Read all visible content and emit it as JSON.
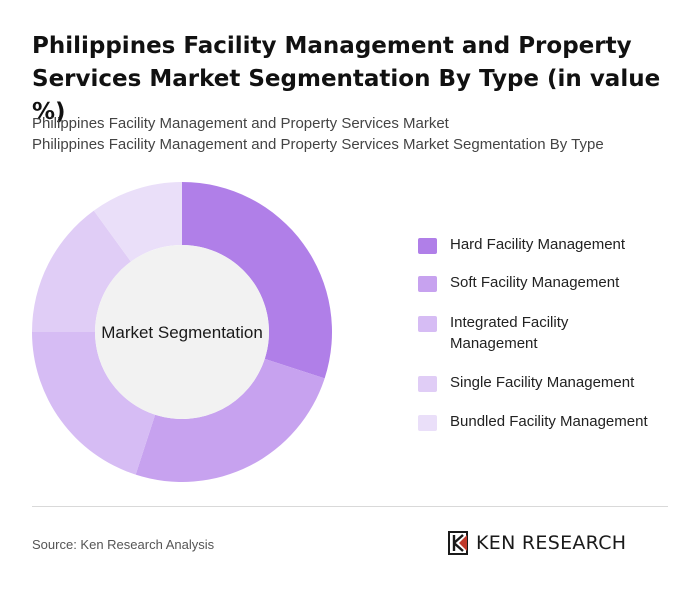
{
  "header": {
    "title": "Philippines Facility Management and Property Services Market Segmentation By Type (in value %)",
    "subtitle_line1": "Philippines Facility Management and Property Services Market",
    "subtitle_line2": "Philippines Facility Management and Property Services Market Segmentation By Type"
  },
  "chart_data": {
    "type": "pie",
    "variant": "donut",
    "center_label": "Market Segmentation",
    "categories": [
      "Hard Facility Management",
      "Soft Facility Management",
      "Integrated Facility Management",
      "Single Facility Management",
      "Bundled Facility Management"
    ],
    "values": [
      30,
      25,
      20,
      15,
      10
    ],
    "colors": [
      "#b07fe8",
      "#c7a2ef",
      "#d6bcf4",
      "#e0cdf6",
      "#eadff9"
    ],
    "legend_position": "right"
  },
  "legend_labels": [
    "Hard Facility Management",
    "Soft Facility Management",
    [
      "Integrated Facility",
      "Management"
    ],
    "Single Facility Management",
    "Bundled Facility Management"
  ],
  "footer": {
    "source": "Source: Ken Research Analysis",
    "logo_text": "KEN RESEARCH"
  }
}
